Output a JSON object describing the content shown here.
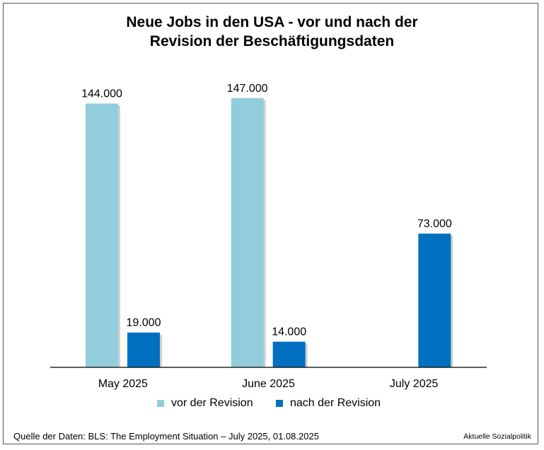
{
  "chart_data": {
    "type": "bar",
    "title_line1": "Neue Jobs in den USA - vor und nach der",
    "title_line2": "Revision der Beschäftigungsdaten",
    "categories": [
      "May 2025",
      "June 2025",
      "July 2025"
    ],
    "series": [
      {
        "name": "vor der Revision",
        "values": [
          144000,
          147000,
          null
        ],
        "labels": [
          "144.000",
          "147.000",
          ""
        ],
        "color": "#92cddc"
      },
      {
        "name": "nach der Revision",
        "values": [
          19000,
          14000,
          73000
        ],
        "labels": [
          "19.000",
          "14.000",
          "73.000"
        ],
        "color": "#0070c0"
      }
    ],
    "ylim": [
      0,
      150000
    ],
    "grid": false,
    "legend_position": "bottom"
  },
  "footer": {
    "source": "Quelle der Daten: BLS: The Employment Situation – July 2025, 01.08.2025",
    "credit": "Aktuelle Sozialpolitik"
  }
}
